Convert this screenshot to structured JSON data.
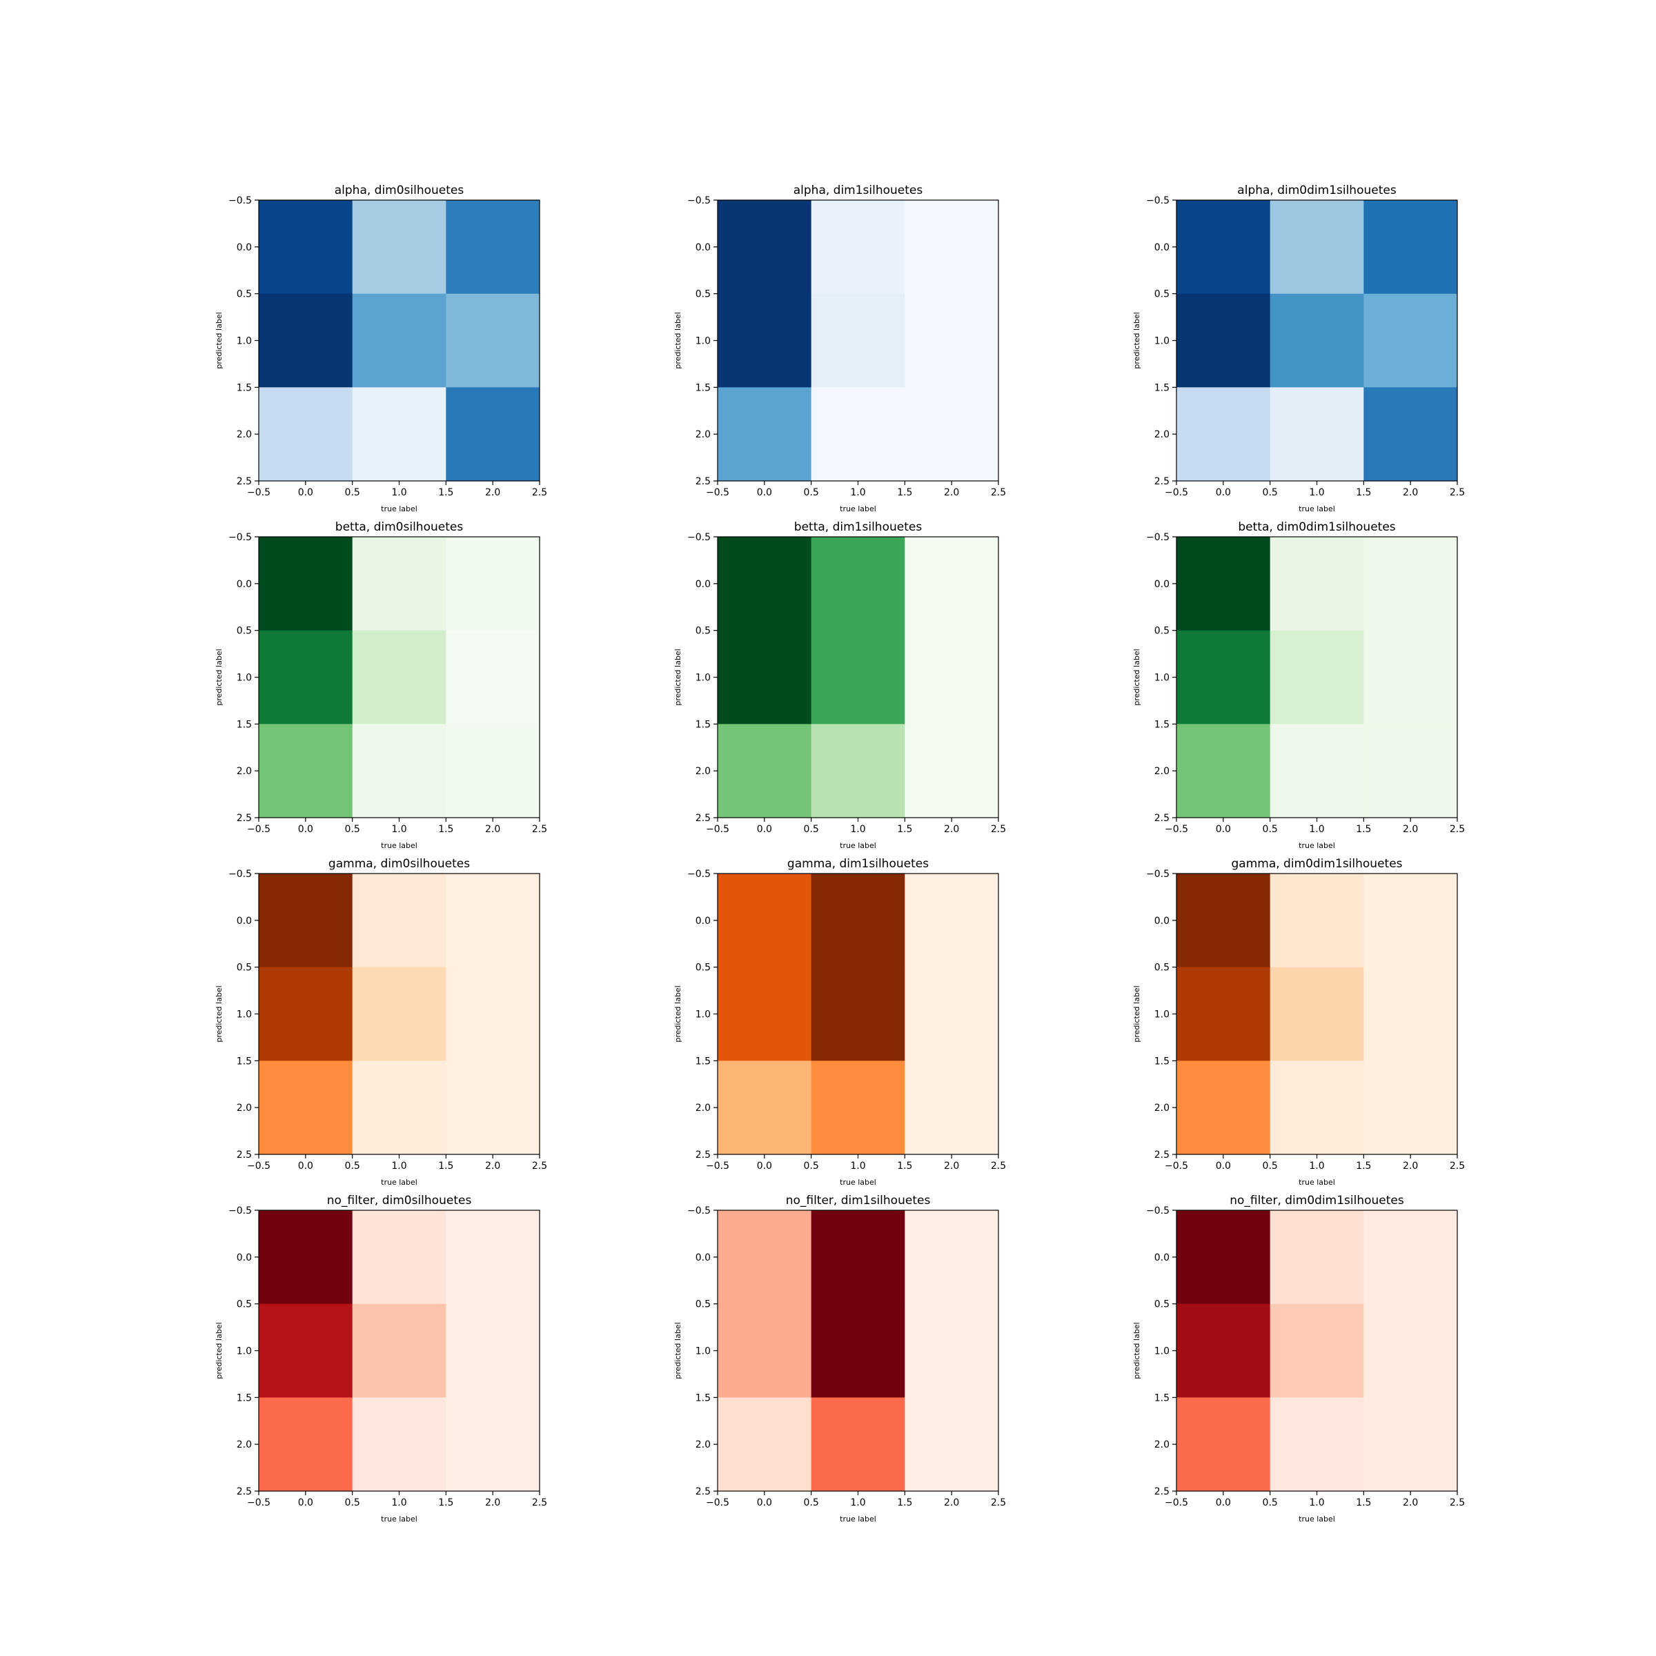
{
  "chart_data": [
    {
      "type": "heatmap",
      "colormap": "Blues",
      "title": "alpha, dim0silhouetes",
      "xlabel": "true label",
      "ylabel": "predicted label",
      "x_ticks": [
        "−0.5",
        "0.0",
        "0.5",
        "1.0",
        "1.5",
        "2.0",
        "2.5"
      ],
      "y_ticks": [
        "−0.5",
        "0.0",
        "0.5",
        "1.0",
        "1.5",
        "2.0",
        "2.5"
      ],
      "xlim": [
        -0.5,
        2.5
      ],
      "ylim": [
        2.5,
        -0.5
      ],
      "grid": false,
      "values": [
        [
          0.92,
          0.35,
          0.7
        ],
        [
          0.98,
          0.55,
          0.45
        ],
        [
          0.25,
          0.08,
          0.72
        ]
      ]
    },
    {
      "type": "heatmap",
      "colormap": "Blues",
      "title": "alpha, dim1silhouetes",
      "xlabel": "true label",
      "ylabel": "predicted label",
      "x_ticks": [
        "−0.5",
        "0.0",
        "0.5",
        "1.0",
        "1.5",
        "2.0",
        "2.5"
      ],
      "y_ticks": [
        "−0.5",
        "0.0",
        "0.5",
        "1.0",
        "1.5",
        "2.0",
        "2.5"
      ],
      "xlim": [
        -0.5,
        2.5
      ],
      "ylim": [
        2.5,
        -0.5
      ],
      "grid": false,
      "values": [
        [
          0.98,
          0.07,
          0.02
        ],
        [
          0.98,
          0.09,
          0.02
        ],
        [
          0.55,
          0.02,
          0.02
        ]
      ]
    },
    {
      "type": "heatmap",
      "colormap": "Blues",
      "title": "alpha, dim0dim1silhouetes",
      "xlabel": "true label",
      "ylabel": "predicted label",
      "x_ticks": [
        "−0.5",
        "0.0",
        "0.5",
        "1.0",
        "1.5",
        "2.0",
        "2.5"
      ],
      "y_ticks": [
        "−0.5",
        "0.0",
        "0.5",
        "1.0",
        "1.5",
        "2.0",
        "2.5"
      ],
      "xlim": [
        -0.5,
        2.5
      ],
      "ylim": [
        2.5,
        -0.5
      ],
      "grid": false,
      "values": [
        [
          0.92,
          0.38,
          0.75
        ],
        [
          0.98,
          0.62,
          0.5
        ],
        [
          0.25,
          0.1,
          0.72
        ]
      ]
    },
    {
      "type": "heatmap",
      "colormap": "Greens",
      "title": "betta, dim0silhouetes",
      "xlabel": "true label",
      "ylabel": "predicted label",
      "x_ticks": [
        "−0.5",
        "0.0",
        "0.5",
        "1.0",
        "1.5",
        "2.0",
        "2.5"
      ],
      "y_ticks": [
        "−0.5",
        "0.0",
        "0.5",
        "1.0",
        "1.5",
        "2.0",
        "2.5"
      ],
      "xlim": [
        -0.5,
        2.5
      ],
      "ylim": [
        2.5,
        -0.5
      ],
      "grid": false,
      "values": [
        [
          0.98,
          0.1,
          0.04
        ],
        [
          0.82,
          0.2,
          0.02
        ],
        [
          0.5,
          0.06,
          0.04
        ]
      ]
    },
    {
      "type": "heatmap",
      "colormap": "Greens",
      "title": "betta, dim1silhouetes",
      "xlabel": "true label",
      "ylabel": "predicted label",
      "x_ticks": [
        "−0.5",
        "0.0",
        "0.5",
        "1.0",
        "1.5",
        "2.0",
        "2.5"
      ],
      "y_ticks": [
        "−0.5",
        "0.0",
        "0.5",
        "1.0",
        "1.5",
        "2.0",
        "2.5"
      ],
      "xlim": [
        -0.5,
        2.5
      ],
      "ylim": [
        2.5,
        -0.5
      ],
      "grid": false,
      "values": [
        [
          0.98,
          0.65,
          0.03
        ],
        [
          0.98,
          0.65,
          0.03
        ],
        [
          0.5,
          0.3,
          0.03
        ]
      ]
    },
    {
      "type": "heatmap",
      "colormap": "Greens",
      "title": "betta, dim0dim1silhouetes",
      "xlabel": "true label",
      "ylabel": "predicted label",
      "x_ticks": [
        "−0.5",
        "0.0",
        "0.5",
        "1.0",
        "1.5",
        "2.0",
        "2.5"
      ],
      "y_ticks": [
        "−0.5",
        "0.0",
        "0.5",
        "1.0",
        "1.5",
        "2.0",
        "2.5"
      ],
      "xlim": [
        -0.5,
        2.5
      ],
      "ylim": [
        2.5,
        -0.5
      ],
      "grid": false,
      "values": [
        [
          0.98,
          0.1,
          0.06
        ],
        [
          0.82,
          0.18,
          0.06
        ],
        [
          0.5,
          0.06,
          0.06
        ]
      ]
    },
    {
      "type": "heatmap",
      "colormap": "Oranges",
      "title": "gamma, dim0silhouetes",
      "xlabel": "true label",
      "ylabel": "predicted label",
      "x_ticks": [
        "−0.5",
        "0.0",
        "0.5",
        "1.0",
        "1.5",
        "2.0",
        "2.5"
      ],
      "y_ticks": [
        "−0.5",
        "0.0",
        "0.5",
        "1.0",
        "1.5",
        "2.0",
        "2.5"
      ],
      "xlim": [
        -0.5,
        2.5
      ],
      "ylim": [
        2.5,
        -0.5
      ],
      "grid": false,
      "values": [
        [
          0.98,
          0.1,
          0.04
        ],
        [
          0.85,
          0.2,
          0.04
        ],
        [
          0.5,
          0.07,
          0.04
        ]
      ]
    },
    {
      "type": "heatmap",
      "colormap": "Oranges",
      "title": "gamma, dim1silhouetes",
      "xlabel": "true label",
      "ylabel": "predicted label",
      "x_ticks": [
        "−0.5",
        "0.0",
        "0.5",
        "1.0",
        "1.5",
        "2.0",
        "2.5"
      ],
      "y_ticks": [
        "−0.5",
        "0.0",
        "0.5",
        "1.0",
        "1.5",
        "2.0",
        "2.5"
      ],
      "xlim": [
        -0.5,
        2.5
      ],
      "ylim": [
        2.5,
        -0.5
      ],
      "grid": false,
      "values": [
        [
          0.7,
          0.98,
          0.04
        ],
        [
          0.7,
          0.98,
          0.04
        ],
        [
          0.35,
          0.5,
          0.04
        ]
      ]
    },
    {
      "type": "heatmap",
      "colormap": "Oranges",
      "title": "gamma, dim0dim1silhouetes",
      "xlabel": "true label",
      "ylabel": "predicted label",
      "x_ticks": [
        "−0.5",
        "0.0",
        "0.5",
        "1.0",
        "1.5",
        "2.0",
        "2.5"
      ],
      "y_ticks": [
        "−0.5",
        "0.0",
        "0.5",
        "1.0",
        "1.5",
        "2.0",
        "2.5"
      ],
      "xlim": [
        -0.5,
        2.5
      ],
      "ylim": [
        2.5,
        -0.5
      ],
      "grid": false,
      "values": [
        [
          0.98,
          0.12,
          0.05
        ],
        [
          0.85,
          0.22,
          0.05
        ],
        [
          0.5,
          0.08,
          0.05
        ]
      ]
    },
    {
      "type": "heatmap",
      "colormap": "Reds",
      "title": "no_filter, dim0silhouetes",
      "xlabel": "true label",
      "ylabel": "predicted label",
      "x_ticks": [
        "−0.5",
        "0.0",
        "0.5",
        "1.0",
        "1.5",
        "2.0",
        "2.5"
      ],
      "y_ticks": [
        "−0.5",
        "0.0",
        "0.5",
        "1.0",
        "1.5",
        "2.0",
        "2.5"
      ],
      "xlim": [
        -0.5,
        2.5
      ],
      "ylim": [
        2.5,
        -0.5
      ],
      "grid": false,
      "values": [
        [
          0.98,
          0.1,
          0.04
        ],
        [
          0.82,
          0.22,
          0.04
        ],
        [
          0.5,
          0.08,
          0.04
        ]
      ]
    },
    {
      "type": "heatmap",
      "colormap": "Reds",
      "title": "no_filter, dim1silhouetes",
      "xlabel": "true label",
      "ylabel": "predicted label",
      "x_ticks": [
        "−0.5",
        "0.0",
        "0.5",
        "1.0",
        "1.5",
        "2.0",
        "2.5"
      ],
      "y_ticks": [
        "−0.5",
        "0.0",
        "0.5",
        "1.0",
        "1.5",
        "2.0",
        "2.5"
      ],
      "xlim": [
        -0.5,
        2.5
      ],
      "ylim": [
        2.5,
        -0.5
      ],
      "grid": false,
      "values": [
        [
          0.3,
          0.98,
          0.04
        ],
        [
          0.3,
          0.98,
          0.04
        ],
        [
          0.13,
          0.5,
          0.04
        ]
      ]
    },
    {
      "type": "heatmap",
      "colormap": "Reds",
      "title": "no_filter, dim0dim1silhouetes",
      "xlabel": "true label",
      "ylabel": "predicted label",
      "x_ticks": [
        "−0.5",
        "0.0",
        "0.5",
        "1.0",
        "1.5",
        "2.0",
        "2.5"
      ],
      "y_ticks": [
        "−0.5",
        "0.0",
        "0.5",
        "1.0",
        "1.5",
        "2.0",
        "2.5"
      ],
      "xlim": [
        -0.5,
        2.5
      ],
      "ylim": [
        2.5,
        -0.5
      ],
      "grid": false,
      "values": [
        [
          0.98,
          0.12,
          0.06
        ],
        [
          0.88,
          0.2,
          0.06
        ],
        [
          0.5,
          0.08,
          0.06
        ]
      ]
    }
  ],
  "colors": {
    "Blues": [
      "#f7fbff",
      "#deebf7",
      "#c6dbef",
      "#9ecae1",
      "#6baed6",
      "#4292c6",
      "#2171b5",
      "#08519c",
      "#08306b"
    ],
    "Greens": [
      "#f7fcf5",
      "#e5f5e0",
      "#c7e9c0",
      "#a1d99b",
      "#74c476",
      "#41ab5d",
      "#238b45",
      "#006d2c",
      "#00441b"
    ],
    "Oranges": [
      "#fff5eb",
      "#fee6ce",
      "#fdd0a2",
      "#fdae6b",
      "#fd8d3c",
      "#f16913",
      "#d94801",
      "#a63603",
      "#7f2704"
    ],
    "Reds": [
      "#fff5f0",
      "#fee0d2",
      "#fcbba1",
      "#fc9272",
      "#fb6a4a",
      "#ef3b2c",
      "#cb181d",
      "#a50f15",
      "#67000d"
    ]
  }
}
